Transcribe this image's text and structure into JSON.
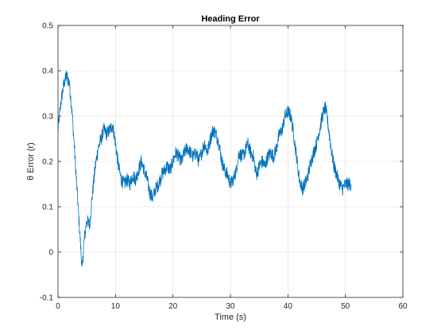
{
  "chart_data": {
    "type": "line",
    "title": "Heading Error",
    "xlabel": "Time (s)",
    "ylabel": "θ Error (r)",
    "xlim": [
      0,
      60
    ],
    "ylim": [
      -0.1,
      0.5
    ],
    "xticks": [
      0,
      10,
      20,
      30,
      40,
      50,
      60
    ],
    "yticks": [
      -0.1,
      0,
      0.1,
      0.2,
      0.3,
      0.4,
      0.5
    ],
    "xtick_labels": [
      "0",
      "10",
      "20",
      "30",
      "40",
      "50",
      "60"
    ],
    "ytick_labels": [
      "-0.1",
      "0",
      "0.1",
      "0.2",
      "0.3",
      "0.4",
      "0.5"
    ],
    "grid": true,
    "line_color": "#0072BD",
    "series": [
      {
        "x": [
          0,
          0.5,
          1.0,
          1.5,
          2.0,
          2.5,
          3.0,
          3.5,
          4.0,
          4.2,
          4.5,
          5.0,
          5.5,
          6.0,
          6.5,
          7.0,
          7.5,
          8.0,
          8.5,
          9.0,
          9.5,
          10.0,
          10.5,
          11.0,
          11.5,
          12.0,
          12.5,
          13.0,
          13.5,
          14.0,
          14.5,
          15.0,
          15.5,
          16.0,
          16.5,
          17.0,
          17.5,
          18.0,
          18.5,
          19.0,
          19.5,
          20.0,
          20.5,
          21.0,
          21.5,
          22.0,
          22.5,
          23.0,
          23.5,
          24.0,
          24.5,
          25.0,
          25.5,
          26.0,
          26.5,
          27.0,
          27.5,
          28.0,
          28.5,
          29.0,
          29.5,
          30.0,
          30.5,
          31.0,
          31.5,
          32.0,
          32.5,
          33.0,
          33.5,
          34.0,
          34.5,
          35.0,
          35.5,
          36.0,
          36.5,
          37.0,
          37.5,
          38.0,
          38.5,
          39.0,
          39.5,
          40.0,
          40.5,
          41.0,
          41.5,
          42.0,
          42.5,
          43.0,
          43.5,
          44.0,
          44.5,
          45.0,
          45.5,
          46.0,
          46.5,
          47.0,
          47.5,
          48.0,
          48.5,
          49.0,
          49.5,
          50.0,
          50.5,
          51.0
        ],
        "y": [
          0.27,
          0.33,
          0.37,
          0.39,
          0.37,
          0.3,
          0.2,
          0.1,
          0.0,
          -0.04,
          0.02,
          0.07,
          0.06,
          0.13,
          0.19,
          0.23,
          0.25,
          0.27,
          0.26,
          0.27,
          0.28,
          0.24,
          0.19,
          0.16,
          0.15,
          0.16,
          0.15,
          0.17,
          0.16,
          0.18,
          0.2,
          0.18,
          0.16,
          0.13,
          0.12,
          0.14,
          0.15,
          0.17,
          0.18,
          0.19,
          0.18,
          0.2,
          0.22,
          0.21,
          0.2,
          0.22,
          0.23,
          0.22,
          0.21,
          0.22,
          0.2,
          0.22,
          0.24,
          0.22,
          0.25,
          0.27,
          0.26,
          0.24,
          0.2,
          0.18,
          0.17,
          0.15,
          0.16,
          0.18,
          0.22,
          0.21,
          0.22,
          0.24,
          0.22,
          0.21,
          0.17,
          0.19,
          0.2,
          0.19,
          0.21,
          0.22,
          0.21,
          0.23,
          0.26,
          0.27,
          0.3,
          0.31,
          0.3,
          0.26,
          0.21,
          0.16,
          0.14,
          0.15,
          0.17,
          0.2,
          0.22,
          0.24,
          0.27,
          0.3,
          0.32,
          0.28,
          0.23,
          0.19,
          0.17,
          0.15,
          0.14,
          0.15,
          0.15,
          0.15
        ],
        "noise_amplitude": 0.015
      }
    ]
  }
}
